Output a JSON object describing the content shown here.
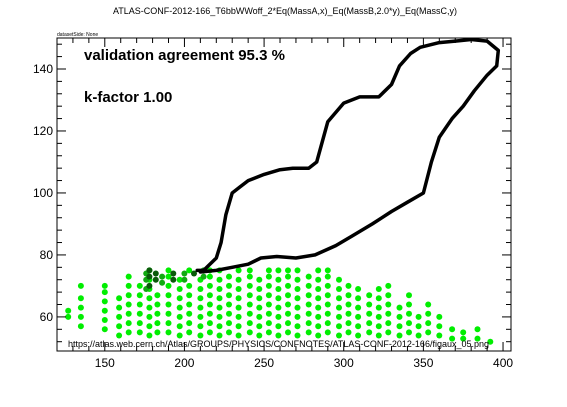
{
  "chart_data": {
    "type": "scatter",
    "title": "ATLAS-CONF-2012-166_T6bbWWoff_2*Eq(MassA,x)_Eq(MassB,2.0*y)_Eq(MassC,y)",
    "dataset_tag": "datasetSide: None",
    "annotations": {
      "agreement": "validation agreement 95.3 %",
      "kfactor": "k-factor 1.00",
      "url": "https://atlas.web.cern.ch/Atlas/GROUPS/PHYSICS/CONFNOTES/ATLAS-CONF-2012-166/figaux_05.png"
    },
    "xlim": [
      120,
      405
    ],
    "ylim": [
      49,
      150
    ],
    "xticks": [
      150,
      200,
      250,
      300,
      350,
      400
    ],
    "yticks": [
      60,
      80,
      100,
      120,
      140
    ],
    "xlabel": "",
    "ylabel": "",
    "grid": false,
    "legend": "none",
    "colors": {
      "bright": "#00ee00",
      "medium": "#11aa11",
      "dark": "#0a5a0a",
      "contour": "#000000"
    },
    "contour": [
      [
        210,
        74.5
      ],
      [
        220,
        75
      ],
      [
        230,
        76
      ],
      [
        240,
        77
      ],
      [
        248,
        79
      ],
      [
        258,
        79.5
      ],
      [
        270,
        79
      ],
      [
        282,
        80
      ],
      [
        295,
        83
      ],
      [
        305,
        86
      ],
      [
        318,
        90
      ],
      [
        330,
        94
      ],
      [
        340,
        97
      ],
      [
        350,
        100
      ],
      [
        355,
        110
      ],
      [
        360,
        118
      ],
      [
        368,
        124
      ],
      [
        375,
        128
      ],
      [
        382,
        133
      ],
      [
        390,
        138
      ],
      [
        396,
        141
      ],
      [
        397,
        146
      ],
      [
        390,
        149
      ],
      [
        380,
        149.5
      ],
      [
        370,
        149
      ],
      [
        360,
        148.5
      ],
      [
        348,
        147
      ],
      [
        342,
        145
      ],
      [
        335,
        141
      ],
      [
        330,
        135
      ],
      [
        322,
        131
      ],
      [
        310,
        131
      ],
      [
        300,
        129
      ],
      [
        290,
        123
      ],
      [
        283,
        110
      ],
      [
        278,
        108
      ],
      [
        268,
        108
      ],
      [
        260,
        107.5
      ],
      [
        250,
        106
      ],
      [
        240,
        104
      ],
      [
        235,
        102
      ],
      [
        230,
        100
      ],
      [
        226,
        93
      ],
      [
        223,
        84
      ],
      [
        220,
        79
      ],
      [
        212,
        75
      ],
      [
        208,
        75
      ]
    ],
    "series": [
      {
        "color": "bright",
        "columns": [
          {
            "x": 127,
            "y": [
              60,
              62
            ]
          },
          {
            "x": 135,
            "y": [
              57,
              60,
              63,
              66,
              70
            ]
          },
          {
            "x": 150,
            "y": [
              56,
              59,
              62,
              65,
              68,
              70
            ]
          },
          {
            "x": 159,
            "y": [
              54,
              57,
              60,
              63,
              66
            ]
          },
          {
            "x": 165,
            "y": [
              55,
              58,
              61,
              64,
              67,
              70,
              73
            ]
          },
          {
            "x": 172,
            "y": [
              55,
              58,
              61,
              64,
              67,
              70
            ]
          },
          {
            "x": 178,
            "y": [
              54,
              57,
              60,
              63,
              66,
              69,
              72,
              75
            ]
          },
          {
            "x": 183,
            "y": [
              55,
              58,
              61,
              64,
              67
            ]
          },
          {
            "x": 190,
            "y": [
              55,
              58,
              61,
              64,
              67,
              70,
              73,
              75
            ]
          },
          {
            "x": 197,
            "y": [
              54,
              57,
              60,
              63,
              66,
              69,
              72
            ]
          },
          {
            "x": 203,
            "y": [
              55,
              58,
              61,
              64,
              67,
              70,
              75
            ]
          },
          {
            "x": 210,
            "y": [
              54,
              57,
              60,
              63,
              66,
              69,
              72
            ]
          },
          {
            "x": 216,
            "y": [
              55,
              58,
              61,
              64,
              67,
              70,
              73,
              75
            ]
          },
          {
            "x": 222,
            "y": [
              54,
              57,
              60,
              63,
              66,
              69,
              72,
              75
            ]
          },
          {
            "x": 228,
            "y": [
              55,
              58,
              61,
              64,
              67,
              70,
              73
            ]
          },
          {
            "x": 234,
            "y": [
              54,
              57,
              60,
              63,
              66,
              69,
              72,
              75
            ]
          },
          {
            "x": 241,
            "y": [
              55,
              58,
              61,
              64,
              67,
              70,
              73,
              75
            ]
          },
          {
            "x": 247,
            "y": [
              54,
              57,
              60,
              63,
              66,
              69,
              72
            ]
          },
          {
            "x": 253,
            "y": [
              55,
              58,
              61,
              64,
              67,
              70,
              73,
              75
            ]
          },
          {
            "x": 259,
            "y": [
              54,
              57,
              60,
              63,
              66,
              69,
              72,
              75
            ]
          },
          {
            "x": 265,
            "y": [
              55,
              58,
              61,
              64,
              67,
              70,
              73,
              75
            ]
          },
          {
            "x": 271,
            "y": [
              54,
              57,
              60,
              63,
              66,
              69,
              72,
              75
            ]
          },
          {
            "x": 278,
            "y": [
              55,
              58,
              61,
              64,
              67,
              70,
              73
            ]
          },
          {
            "x": 284,
            "y": [
              54,
              57,
              60,
              63,
              66,
              69,
              72,
              75
            ]
          },
          {
            "x": 290,
            "y": [
              55,
              58,
              61,
              64,
              67,
              70,
              73,
              75
            ]
          },
          {
            "x": 297,
            "y": [
              54,
              57,
              60,
              63,
              66,
              69,
              72
            ]
          },
          {
            "x": 303,
            "y": [
              55,
              58,
              61,
              64,
              67,
              70
            ]
          },
          {
            "x": 309,
            "y": [
              54,
              57,
              60,
              63,
              66,
              69
            ]
          },
          {
            "x": 316,
            "y": [
              55,
              58,
              61,
              64,
              67
            ]
          },
          {
            "x": 322,
            "y": [
              54,
              57,
              60,
              63,
              66,
              69
            ]
          },
          {
            "x": 328,
            "y": [
              55,
              58,
              61,
              64,
              67,
              70
            ]
          },
          {
            "x": 335,
            "y": [
              54,
              57,
              60,
              63
            ]
          },
          {
            "x": 341,
            "y": [
              55,
              58,
              61,
              64,
              67
            ]
          },
          {
            "x": 347,
            "y": [
              54,
              57,
              60
            ]
          },
          {
            "x": 353,
            "y": [
              55,
              58,
              61,
              64
            ]
          },
          {
            "x": 360,
            "y": [
              54,
              57,
              60
            ]
          },
          {
            "x": 368,
            "y": [
              53,
              56
            ]
          },
          {
            "x": 375,
            "y": [
              53,
              55
            ]
          },
          {
            "x": 384,
            "y": [
              53,
              56
            ]
          },
          {
            "x": 392,
            "y": [
              52
            ]
          }
        ]
      },
      {
        "color": "medium",
        "columns": [
          {
            "x": 176,
            "y": [
              69,
              72,
              74
            ]
          },
          {
            "x": 186,
            "y": [
              71,
              73
            ]
          },
          {
            "x": 200,
            "y": [
              72,
              74
            ]
          },
          {
            "x": 212,
            "y": [
              73,
              75
            ]
          }
        ]
      },
      {
        "color": "dark",
        "columns": [
          {
            "x": 178,
            "y": [
              70,
              73,
              75
            ]
          },
          {
            "x": 182,
            "y": [
              72,
              74
            ]
          },
          {
            "x": 193,
            "y": [
              72,
              74
            ]
          },
          {
            "x": 206,
            "y": [
              74
            ]
          }
        ]
      }
    ]
  }
}
